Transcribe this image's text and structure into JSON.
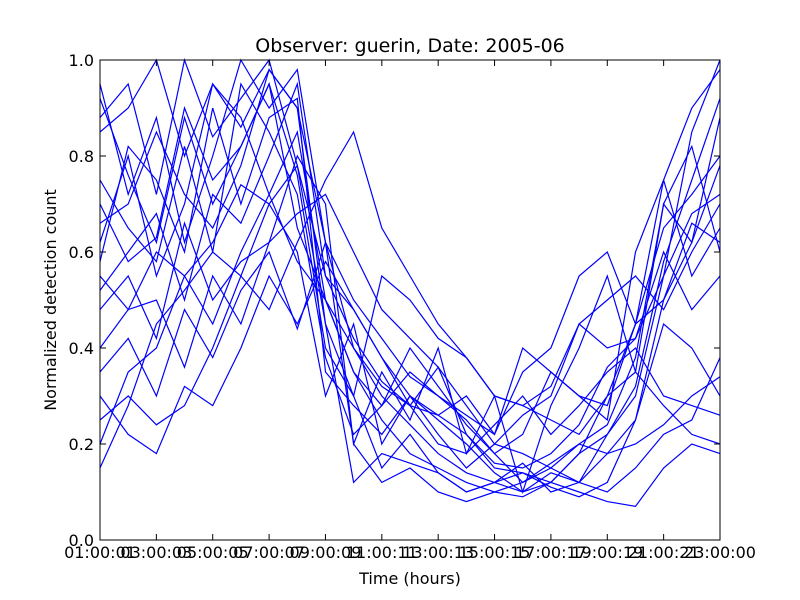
{
  "chart_data": {
    "type": "line",
    "title": "Observer: guerin, Date: 2005-06",
    "xlabel": "Time (hours)",
    "ylabel": "Normalized detection count",
    "xlim": [
      1,
      23
    ],
    "ylim": [
      0.0,
      1.0
    ],
    "grid": false,
    "legend": "none",
    "line_color": "#0000ff",
    "x": [
      1,
      2,
      3,
      4,
      5,
      6,
      7,
      8,
      9,
      10,
      11,
      12,
      13,
      14,
      15,
      16,
      17,
      18,
      19,
      20,
      21,
      22,
      23
    ],
    "x_tick_values": [
      1,
      3,
      5,
      7,
      9,
      11,
      13,
      15,
      17,
      19,
      21,
      23
    ],
    "x_tick_labels": [
      "01:00:01",
      "03:00:03",
      "05:00:05",
      "07:00:07",
      "09:00:09",
      "11:00:11",
      "13:00:13",
      "15:00:15",
      "17:00:17",
      "19:00:19",
      "21:00:21",
      "23:00:00"
    ],
    "y_tick_values": [
      0.0,
      0.2,
      0.4,
      0.6,
      0.8,
      1.0
    ],
    "y_tick_labels": [
      "0.0",
      "0.2",
      "0.4",
      "0.6",
      "0.8",
      "1.0"
    ],
    "series": [
      {
        "values": [
          0.88,
          0.95,
          0.72,
          1.0,
          0.84,
          0.92,
          1.0,
          0.78,
          0.45,
          0.3,
          0.15,
          0.22,
          0.14,
          0.1,
          0.12,
          0.16,
          0.1,
          0.12,
          0.22,
          0.3,
          0.55,
          0.85,
          1.0
        ]
      },
      {
        "values": [
          0.62,
          0.8,
          0.55,
          0.7,
          0.95,
          0.86,
          0.98,
          0.9,
          0.62,
          0.2,
          0.35,
          0.25,
          0.4,
          0.18,
          0.3,
          0.1,
          0.28,
          0.4,
          0.55,
          0.35,
          0.7,
          0.62,
          0.88
        ]
      },
      {
        "values": [
          0.25,
          0.3,
          0.24,
          0.28,
          0.4,
          0.55,
          0.7,
          0.6,
          0.3,
          0.45,
          0.2,
          0.3,
          0.22,
          0.15,
          0.2,
          0.26,
          0.3,
          0.45,
          0.4,
          0.42,
          0.6,
          0.48,
          0.55
        ]
      },
      {
        "values": [
          0.75,
          0.65,
          0.58,
          0.82,
          0.6,
          0.95,
          0.85,
          0.72,
          0.38,
          0.22,
          0.28,
          0.35,
          0.3,
          0.25,
          0.18,
          0.22,
          0.35,
          0.3,
          0.25,
          0.6,
          0.75,
          0.9,
          0.98
        ]
      },
      {
        "values": [
          0.52,
          0.6,
          0.68,
          0.5,
          0.72,
          0.66,
          0.8,
          0.95,
          0.55,
          0.42,
          0.33,
          0.28,
          0.36,
          0.22,
          0.15,
          0.14,
          0.12,
          0.18,
          0.3,
          0.45,
          0.5,
          0.66,
          0.62
        ]
      },
      {
        "values": [
          0.2,
          0.35,
          0.4,
          0.55,
          0.45,
          0.6,
          0.72,
          0.58,
          0.5,
          0.35,
          0.25,
          0.18,
          0.15,
          0.12,
          0.1,
          0.12,
          0.15,
          0.2,
          0.18,
          0.25,
          0.45,
          0.4,
          0.3
        ]
      },
      {
        "values": [
          0.95,
          0.72,
          0.88,
          0.62,
          0.8,
          1.0,
          0.9,
          0.98,
          0.62,
          0.5,
          0.42,
          0.34,
          0.3,
          0.26,
          0.22,
          0.4,
          0.35,
          0.3,
          0.28,
          0.45,
          0.65,
          0.72,
          0.8
        ]
      },
      {
        "values": [
          0.4,
          0.48,
          0.5,
          0.36,
          0.55,
          0.45,
          0.62,
          0.8,
          0.7,
          0.2,
          0.12,
          0.15,
          0.1,
          0.08,
          0.1,
          0.09,
          0.12,
          0.1,
          0.08,
          0.07,
          0.15,
          0.2,
          0.18
        ]
      },
      {
        "values": [
          0.7,
          0.58,
          0.63,
          0.9,
          0.75,
          0.82,
          0.95,
          0.76,
          0.4,
          0.3,
          0.55,
          0.5,
          0.42,
          0.38,
          0.3,
          0.28,
          0.32,
          0.45,
          0.5,
          0.55,
          0.48,
          0.6,
          0.7
        ]
      },
      {
        "values": [
          0.58,
          0.82,
          0.75,
          0.6,
          0.9,
          0.7,
          0.88,
          0.92,
          0.35,
          0.28,
          0.22,
          0.3,
          0.25,
          0.2,
          0.14,
          0.1,
          0.12,
          0.18,
          0.22,
          0.32,
          0.58,
          0.75,
          0.92
        ]
      },
      {
        "values": [
          0.3,
          0.22,
          0.18,
          0.32,
          0.28,
          0.4,
          0.55,
          0.45,
          0.58,
          0.48,
          0.38,
          0.28,
          0.2,
          0.18,
          0.24,
          0.3,
          0.22,
          0.28,
          0.35,
          0.4,
          0.3,
          0.28,
          0.26
        ]
      },
      {
        "values": [
          0.85,
          0.9,
          1.0,
          0.8,
          0.95,
          0.88,
          0.72,
          0.85,
          0.5,
          0.4,
          0.32,
          0.28,
          0.26,
          0.3,
          0.22,
          0.35,
          0.4,
          0.55,
          0.6,
          0.45,
          0.75,
          0.55,
          0.65
        ]
      },
      {
        "values": [
          0.48,
          0.55,
          0.42,
          0.66,
          0.5,
          0.58,
          0.62,
          0.68,
          0.72,
          0.6,
          0.48,
          0.42,
          0.36,
          0.28,
          0.2,
          0.18,
          0.15,
          0.12,
          0.1,
          0.15,
          0.22,
          0.25,
          0.38
        ]
      },
      {
        "values": [
          0.66,
          0.7,
          0.85,
          0.72,
          0.65,
          0.78,
          0.98,
          0.9,
          0.45,
          0.12,
          0.18,
          0.16,
          0.14,
          0.1,
          0.12,
          0.14,
          0.11,
          0.09,
          0.12,
          0.25,
          0.5,
          0.62,
          0.78
        ]
      },
      {
        "values": [
          0.15,
          0.28,
          0.45,
          0.52,
          0.6,
          0.55,
          0.48,
          0.62,
          0.75,
          0.85,
          0.65,
          0.55,
          0.45,
          0.38,
          0.3,
          0.28,
          0.25,
          0.22,
          0.3,
          0.35,
          0.28,
          0.22,
          0.2
        ]
      },
      {
        "values": [
          0.92,
          0.76,
          0.62,
          0.88,
          0.7,
          0.82,
          0.95,
          0.65,
          0.5,
          0.35,
          0.28,
          0.4,
          0.32,
          0.24,
          0.18,
          0.12,
          0.16,
          0.2,
          0.24,
          0.38,
          0.7,
          0.82,
          0.6
        ]
      },
      {
        "values": [
          0.55,
          0.48,
          0.6,
          0.55,
          0.62,
          0.74,
          0.7,
          0.78,
          0.55,
          0.48,
          0.38,
          0.3,
          0.26,
          0.22,
          0.16,
          0.15,
          0.18,
          0.24,
          0.36,
          0.42,
          0.55,
          0.68,
          0.72
        ]
      },
      {
        "values": [
          0.35,
          0.42,
          0.3,
          0.48,
          0.38,
          0.52,
          0.6,
          0.44,
          0.62,
          0.4,
          0.3,
          0.24,
          0.18,
          0.14,
          0.12,
          0.1,
          0.14,
          0.12,
          0.18,
          0.2,
          0.24,
          0.3,
          0.34
        ]
      }
    ]
  }
}
